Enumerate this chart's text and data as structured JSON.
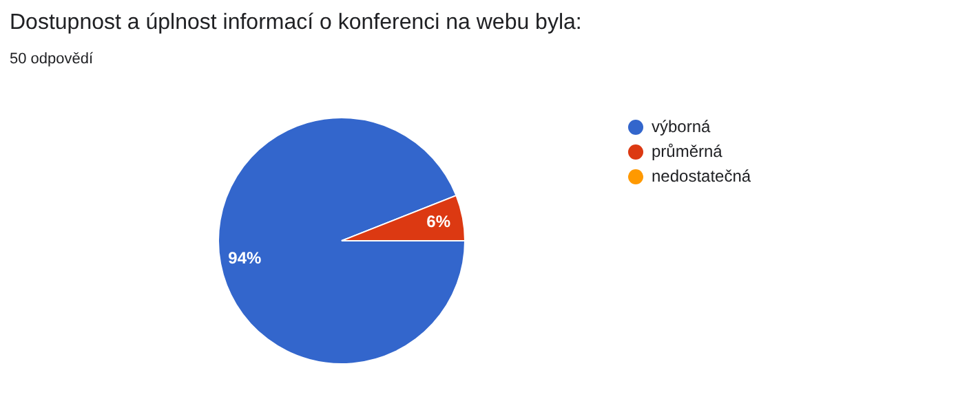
{
  "chart_data": {
    "type": "pie",
    "title": "Dostupnost a úplnost informací o konferenci na webu byla:",
    "subtitle": "50 odpovědí",
    "categories": [
      "výborná",
      "průměrná",
      "nedostatečná"
    ],
    "values": [
      94,
      6,
      0
    ],
    "colors": [
      "#3366cc",
      "#dc3912",
      "#ff9900"
    ],
    "value_labels": [
      "94%",
      "6%",
      null
    ],
    "legend": "top right"
  }
}
